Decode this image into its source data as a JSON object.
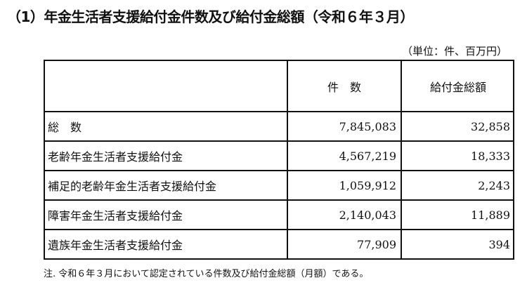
{
  "title": "（1）年金生活者支援給付金件数及び給付金総額（令和６年３月）",
  "unit": "（単位：件、百万円）",
  "table": {
    "headers": [
      "",
      "件　数",
      "給付金総額"
    ],
    "rows": [
      {
        "label": "総　数",
        "count": "7,845,083",
        "amount": "32,858"
      },
      {
        "label": "老齢年金生活者支援給付金",
        "count": "4,567,219",
        "amount": "18,333"
      },
      {
        "label": "補足的老齢年金生活者支援給付金",
        "count": "1,059,912",
        "amount": "2,243"
      },
      {
        "label": "障害年金生活者支援給付金",
        "count": "2,140,043",
        "amount": "11,889"
      },
      {
        "label": "遺族年金生活者支援給付金",
        "count": "77,909",
        "amount": "394"
      }
    ]
  },
  "note": "注. 令和６年３月において認定されている件数及び給付金総額（月額）である。"
}
